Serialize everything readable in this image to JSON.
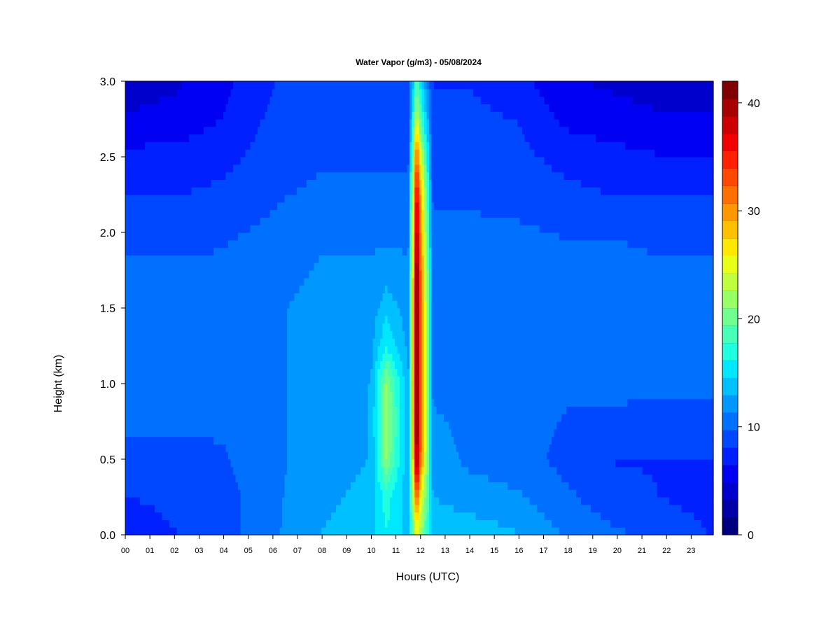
{
  "chart_data": {
    "type": "heatmap",
    "title": "Water Vapor (g/m3) - 05/08/2024",
    "xlabel": "Hours (UTC)",
    "ylabel": "Height (km)",
    "x_ticks": [
      "00",
      "01",
      "02",
      "03",
      "04",
      "05",
      "06",
      "07",
      "08",
      "09",
      "10",
      "11",
      "12",
      "13",
      "14",
      "15",
      "16",
      "17",
      "18",
      "19",
      "20",
      "21",
      "22",
      "23"
    ],
    "y_ticks": [
      "0.0",
      "0.5",
      "1.0",
      "1.5",
      "2.0",
      "2.5",
      "3.0"
    ],
    "xlim": [
      0,
      23.9
    ],
    "ylim": [
      0.0,
      3.0
    ],
    "colorbar": {
      "range": [
        0,
        42
      ],
      "ticks": [
        "0",
        "10",
        "20",
        "30",
        "40"
      ],
      "tick_values": [
        0,
        10,
        20,
        30,
        40
      ],
      "levels": [
        0,
        2,
        4,
        6,
        8,
        10,
        12,
        14,
        16,
        18,
        20,
        22,
        24,
        26,
        28,
        30,
        32,
        34,
        36,
        38,
        40,
        42
      ],
      "colors": [
        "#00007f",
        "#0000a6",
        "#0000cc",
        "#0000f2",
        "#0020ff",
        "#0048ff",
        "#0070ff",
        "#0098ff",
        "#00c0ff",
        "#00e8ff",
        "#20ffdf",
        "#48ffb7",
        "#70ff8f",
        "#98ff67",
        "#c0ff3f",
        "#e8ff17",
        "#ffe800",
        "#ffc000",
        "#ff9800",
        "#ff7000",
        "#ff4800",
        "#ff2000",
        "#f20000",
        "#cc0000",
        "#a60000",
        "#7f0000"
      ]
    },
    "height_km": [
      0.0,
      0.25,
      0.5,
      0.75,
      1.0,
      1.25,
      1.5,
      1.75,
      2.0,
      2.25,
      2.5,
      2.75,
      3.0
    ],
    "series": [
      {
        "hour": 0,
        "values": [
          7,
          8,
          9,
          10,
          10,
          10.5,
          10.5,
          10,
          9,
          8,
          7,
          5,
          4
        ]
      },
      {
        "hour": 2,
        "values": [
          8,
          8.5,
          9,
          10,
          10,
          10.5,
          10.5,
          10,
          9,
          8,
          7,
          5.5,
          4.5
        ]
      },
      {
        "hour": 4,
        "values": [
          9,
          9,
          9.5,
          10,
          10.5,
          10.5,
          10.5,
          10,
          9.5,
          8.5,
          7.5,
          6.5,
          6
        ]
      },
      {
        "hour": 6,
        "values": [
          11,
          11,
          11,
          11,
          11,
          11,
          11,
          10.5,
          10,
          9.5,
          9,
          8.5,
          8
        ]
      },
      {
        "hour": 8,
        "values": [
          13,
          12.5,
          12,
          12,
          12,
          12,
          12,
          11.5,
          11,
          10,
          9.5,
          9,
          8.5
        ]
      },
      {
        "hour": 10,
        "values": [
          14,
          13.5,
          13,
          13,
          13,
          12.5,
          12,
          11.5,
          11,
          10,
          9.5,
          9,
          8.5
        ]
      },
      {
        "hour": 10.6,
        "values": [
          16,
          17,
          21,
          22,
          21,
          16,
          14,
          12,
          11,
          10,
          9.5,
          9,
          8.5
        ]
      },
      {
        "hour": 11.5,
        "values": [
          14,
          13.5,
          13,
          13,
          13,
          12.5,
          12,
          11.5,
          11,
          10,
          9.5,
          9,
          8.5
        ]
      },
      {
        "hour": 11.85,
        "values": [
          24,
          30,
          38,
          40,
          40,
          40,
          40,
          39,
          37,
          35,
          30,
          22,
          18
        ]
      },
      {
        "hour": 12.5,
        "values": [
          14,
          13,
          12,
          11.5,
          11,
          11,
          11,
          10.5,
          10,
          9.5,
          9,
          8.5,
          8
        ]
      },
      {
        "hour": 14,
        "values": [
          14,
          12,
          11,
          11,
          11,
          11,
          11,
          10.5,
          10,
          9.5,
          9,
          8.5,
          8
        ]
      },
      {
        "hour": 16,
        "values": [
          13,
          11.5,
          10.5,
          10.5,
          10.5,
          10.5,
          11,
          10.5,
          10,
          9,
          8.5,
          8,
          7
        ]
      },
      {
        "hour": 18,
        "values": [
          11,
          10,
          9,
          9.5,
          10,
          10.5,
          10.5,
          10.5,
          9.5,
          8.5,
          7.5,
          6,
          5
        ]
      },
      {
        "hour": 20,
        "values": [
          10,
          8.5,
          8,
          9.5,
          10,
          10.5,
          11,
          10.5,
          9.5,
          8,
          7,
          5.5,
          4.5
        ]
      },
      {
        "hour": 22,
        "values": [
          9,
          8,
          8,
          9,
          10,
          10.5,
          10.5,
          10,
          9,
          8,
          6.5,
          5,
          4
        ]
      },
      {
        "hour": 23.9,
        "values": [
          8,
          7.5,
          8,
          9,
          10,
          10.5,
          10.5,
          10,
          9,
          8,
          6.5,
          5,
          4
        ]
      }
    ],
    "grid": false,
    "legend": "colorbar-right"
  }
}
